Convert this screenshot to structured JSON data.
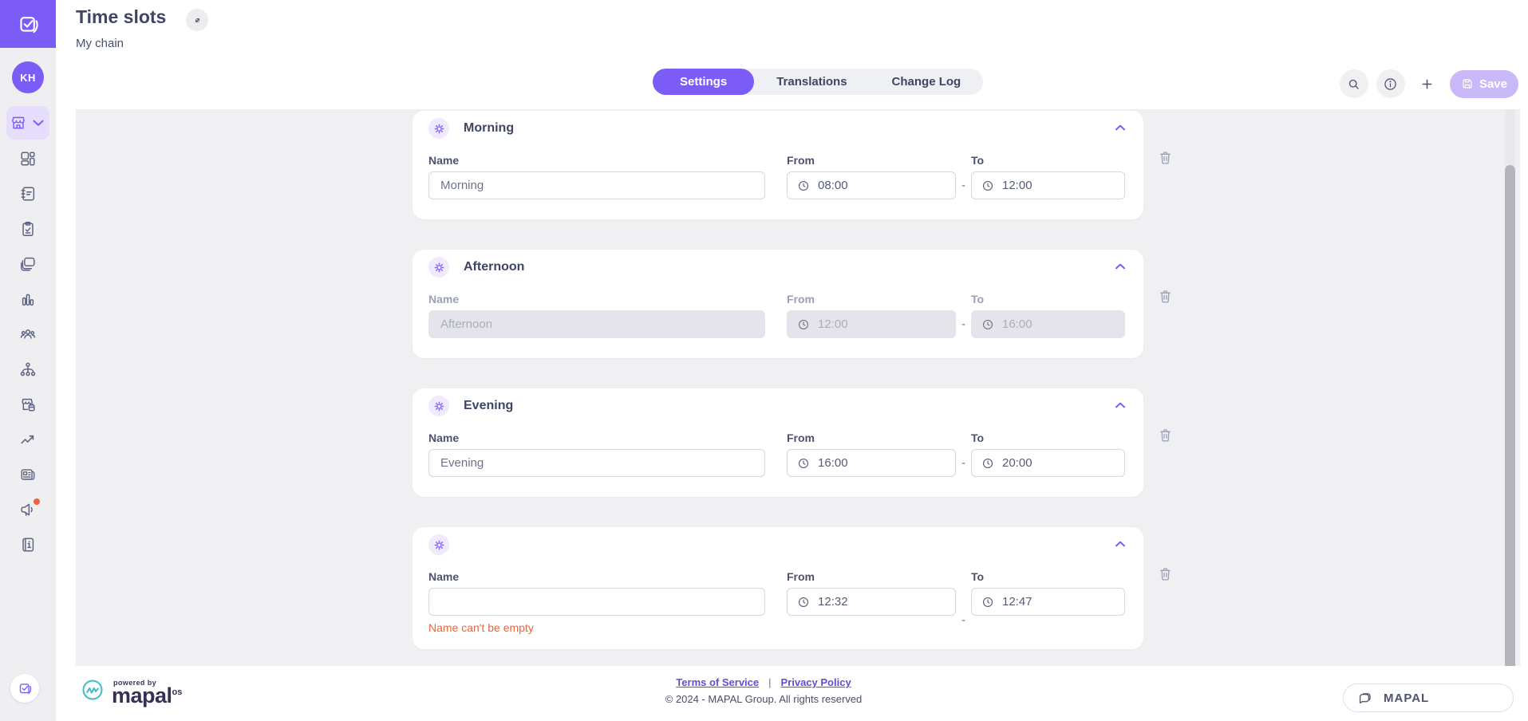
{
  "header": {
    "title": "Time slots",
    "subtitle": "My chain",
    "tabs": [
      {
        "label": "Settings",
        "active": true
      },
      {
        "label": "Translations",
        "active": false
      },
      {
        "label": "Change Log",
        "active": false
      }
    ],
    "save_label": "Save"
  },
  "sidebar": {
    "avatar_initials": "KH",
    "active_icon": "store-icon",
    "icons": [
      "store-icon",
      "dashboard-icon",
      "notebook-icon",
      "clipboard-check-icon",
      "layers-icon",
      "bar-chart-icon",
      "people-icon",
      "hierarchy-icon",
      "store-calendar-icon",
      "trend-up-icon",
      "news-icon",
      "megaphone-icon",
      "info-book-icon"
    ],
    "megaphone_has_notification": true
  },
  "slots": {
    "field_labels": {
      "name": "Name",
      "from": "From",
      "to": "To",
      "range_separator": "-"
    },
    "items": [
      {
        "title": "Morning",
        "name_value": "Morning",
        "from": "08:00",
        "to": "12:00",
        "disabled": false,
        "error": ""
      },
      {
        "title": "Afternoon",
        "name_value": "Afternoon",
        "from": "12:00",
        "to": "16:00",
        "disabled": true,
        "error": ""
      },
      {
        "title": "Evening",
        "name_value": "Evening",
        "from": "16:00",
        "to": "20:00",
        "disabled": false,
        "error": ""
      },
      {
        "title": "",
        "name_value": "",
        "from": "12:32",
        "to": "12:47",
        "disabled": false,
        "error": "Name can't be empty"
      }
    ]
  },
  "footer": {
    "powered_by": "powered by",
    "brand": "mapal",
    "brand_suffix": "os",
    "terms_label": "Terms of Service",
    "separator": "|",
    "privacy_label": "Privacy Policy",
    "copyright": "© 2024 - MAPAL Group. All rights reserved"
  },
  "chat": {
    "label": "MAPAL"
  },
  "colors": {
    "primary": "#7b5cf6",
    "save_disabled": "#c9b9f9",
    "sidebar_active_bg": "#e6defc",
    "gear_bg": "#efeafd",
    "error": "#f2613c",
    "brand_teal": "#45c0c6",
    "link_purple": "#5d50d2"
  }
}
